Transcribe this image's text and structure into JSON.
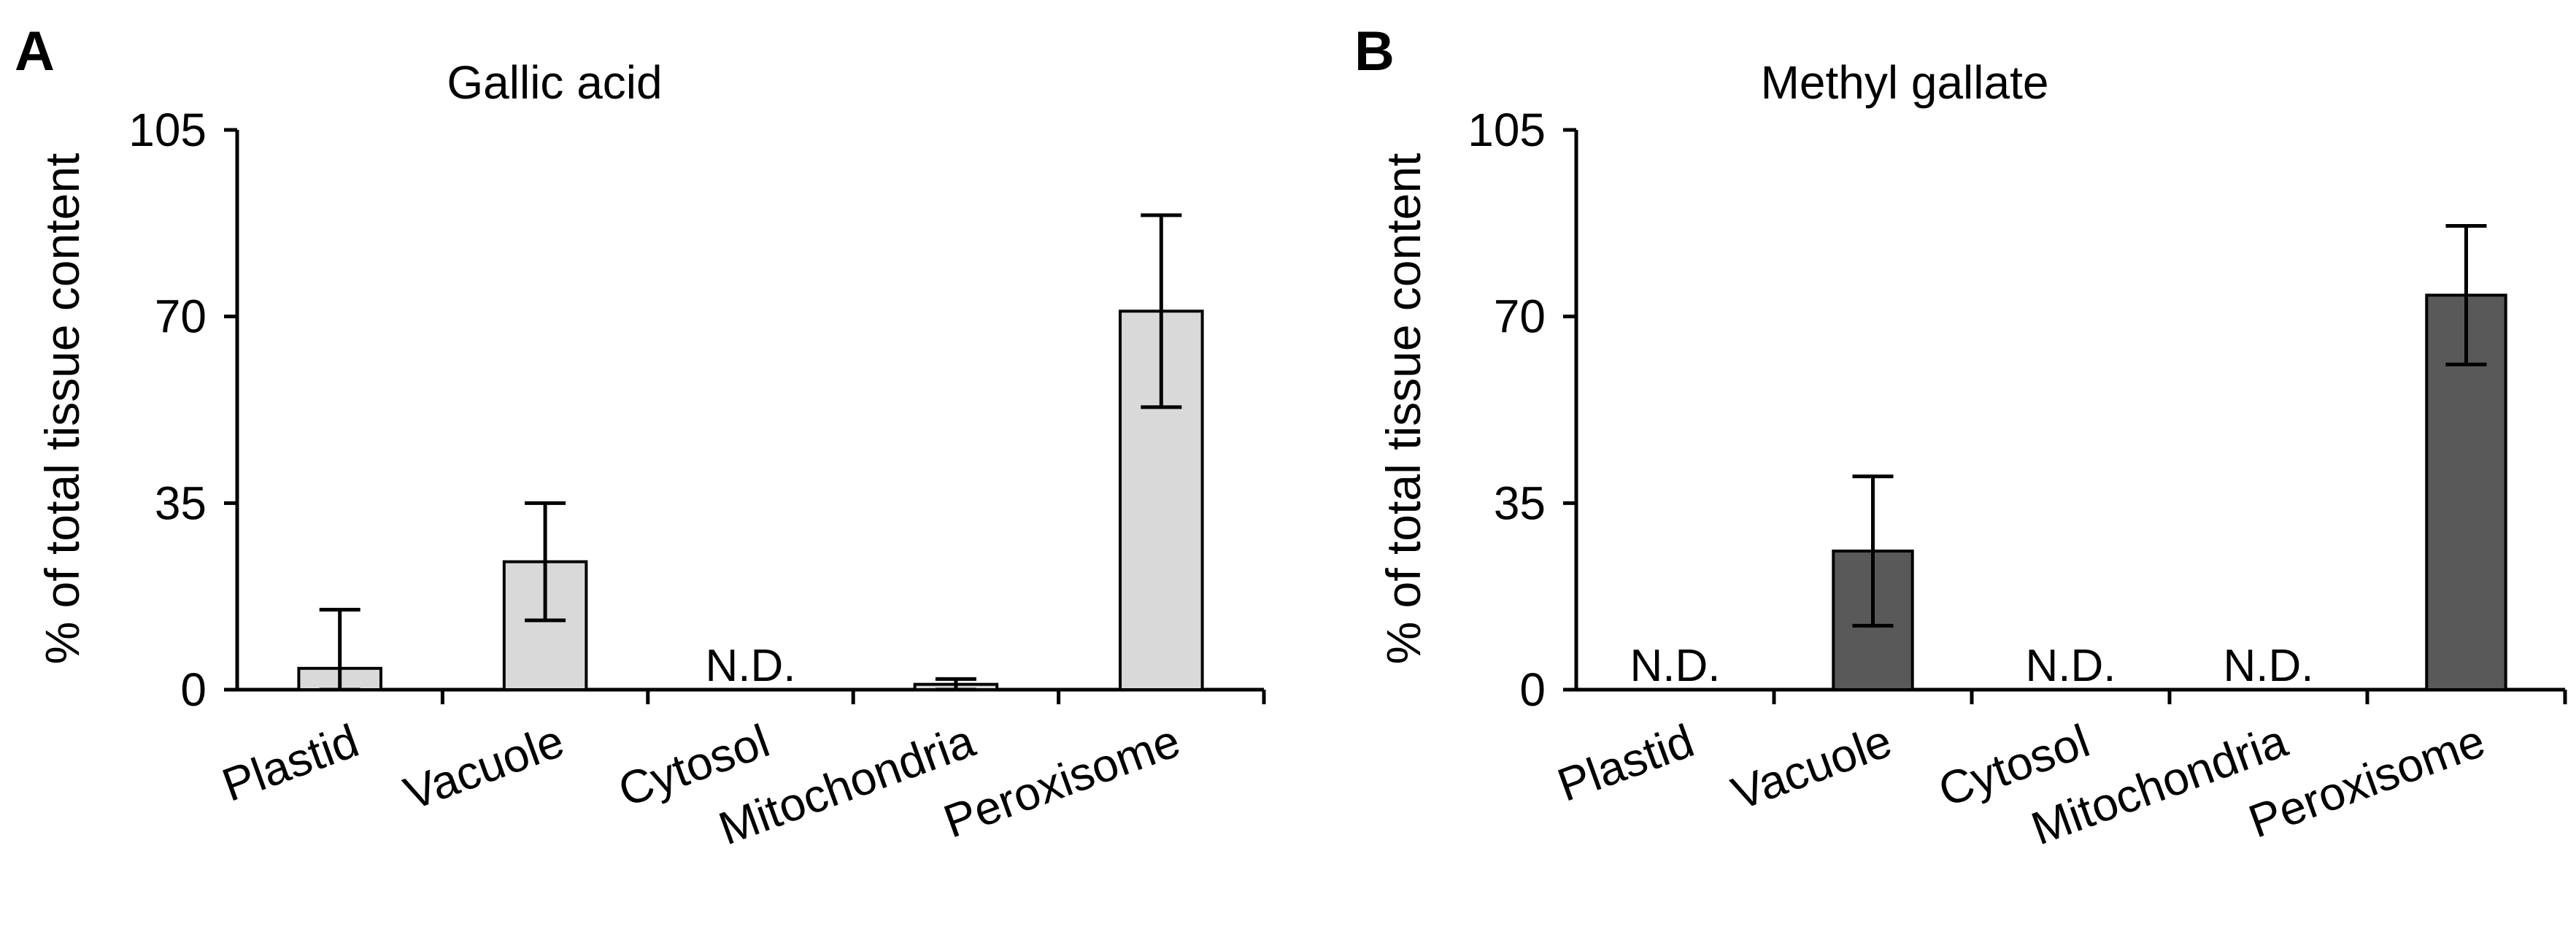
{
  "chart_data": [
    {
      "panel": "A",
      "type": "bar",
      "title": "Gallic acid",
      "ylabel": "% of total tissue content",
      "xlabel": "",
      "ylim": [
        0,
        105
      ],
      "yticks": [
        "0",
        "35",
        "70",
        "105"
      ],
      "categories": [
        "Plastid",
        "Vacuole",
        "Cytosol",
        "Mitochondria",
        "Peroxisome"
      ],
      "values": [
        4,
        24,
        null,
        1,
        71
      ],
      "errors": [
        11,
        11,
        null,
        1,
        18
      ],
      "labels": [
        "",
        "",
        "N.D.",
        "",
        ""
      ],
      "bar_color": "#d9d9d9",
      "error_cap_minimum": null
    },
    {
      "panel": "B",
      "type": "bar",
      "title": "Methyl gallate",
      "ylabel": "% of total tissue content",
      "xlabel": "",
      "ylim": [
        0,
        105
      ],
      "yticks": [
        "0",
        "35",
        "70",
        "105"
      ],
      "categories": [
        "Plastid",
        "Vacuole",
        "Cytosol",
        "Mitochondria",
        "Peroxisome"
      ],
      "values": [
        null,
        26,
        null,
        null,
        74
      ],
      "errors": [
        null,
        14,
        null,
        null,
        13
      ],
      "labels": [
        "N.D.",
        "",
        "N.D.",
        "N.D.",
        ""
      ],
      "bar_color": "#595959"
    }
  ]
}
